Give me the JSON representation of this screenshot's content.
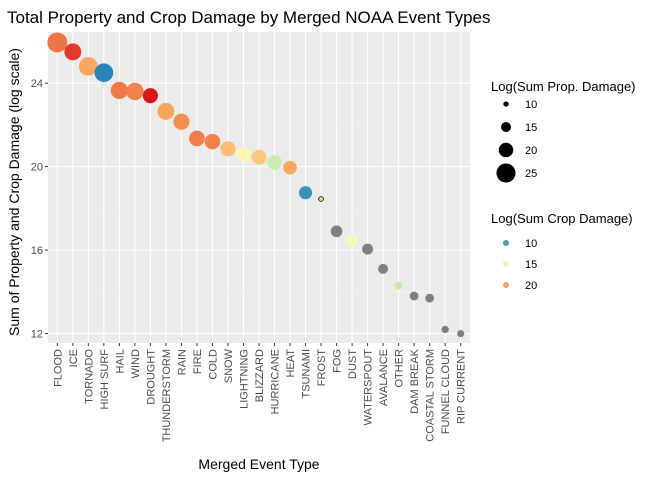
{
  "chart_data": {
    "type": "scatter",
    "title": "Total Property and Crop Damage by Merged NOAA Event Types",
    "xlabel": "Merged Event Type",
    "ylabel": "Sum of Property and Crop Damage (log scale)",
    "ylim": [
      11.55,
      26.45
    ],
    "yticks": [
      12,
      16,
      20,
      24
    ],
    "grid": true,
    "legend_position": "right",
    "categories": [
      "FLOOD",
      "ICE",
      "TORNADO",
      "HIGH SURF",
      "HAIL",
      "WIND",
      "DROUGHT",
      "THUNDERSTORM",
      "RAIN",
      "FIRE",
      "COLD",
      "SNOW",
      "LIGHTNING",
      "BLIZZARD",
      "HURRICANE",
      "HEAT",
      "TSUNAMI",
      "FROST",
      "FOG",
      "DUST",
      "WATERSPOUT",
      "AVALANCE",
      "OTHER",
      "DAM BREAK",
      "COASTAL STORM",
      "FUNNEL CLOUD",
      "RIP CURRENT"
    ],
    "points": [
      {
        "x": "FLOOD",
        "y": 25.95,
        "size": 25.9,
        "color": 21.1
      },
      {
        "x": "ICE",
        "y": 25.5,
        "size": 22.7,
        "color": 22.5
      },
      {
        "x": "TORNADO",
        "y": 24.8,
        "size": 24.6,
        "color": 19.9
      },
      {
        "x": "HIGH SURF",
        "y": 24.5,
        "size": 24.5,
        "color": 9.0
      },
      {
        "x": "HAIL",
        "y": 23.65,
        "size": 23.0,
        "color": 21.0
      },
      {
        "x": "WIND",
        "y": 23.6,
        "size": 23.2,
        "color": 20.8
      },
      {
        "x": "DROUGHT",
        "y": 23.4,
        "size": 20.7,
        "color": 23.3
      },
      {
        "x": "THUNDERSTORM",
        "y": 22.65,
        "size": 22.6,
        "color": 20.0
      },
      {
        "x": "RAIN",
        "y": 22.15,
        "size": 21.8,
        "color": 20.5
      },
      {
        "x": "FIRE",
        "y": 21.35,
        "size": 21.2,
        "color": 20.9
      },
      {
        "x": "COLD",
        "y": 21.2,
        "size": 21.1,
        "color": 20.8
      },
      {
        "x": "SNOW",
        "y": 20.85,
        "size": 20.8,
        "color": 19.0
      },
      {
        "x": "LIGHTNING",
        "y": 20.6,
        "size": 20.8,
        "color": 16.6
      },
      {
        "x": "BLIZZARD",
        "y": 20.45,
        "size": 20.5,
        "color": 18.6
      },
      {
        "x": "HURRICANE",
        "y": 20.2,
        "size": 20.2,
        "color": 14.0
      },
      {
        "x": "HEAT",
        "y": 19.95,
        "size": 19.1,
        "color": 19.9
      },
      {
        "x": "TSUNAMI",
        "y": 18.75,
        "size": 18.5,
        "color": 9.5
      },
      {
        "x": "FROST",
        "y": 18.45,
        "size": 9.3,
        "color": 18.0
      },
      {
        "x": "FOG",
        "y": 16.9,
        "size": 16.9,
        "color": null
      },
      {
        "x": "DUST",
        "y": 16.45,
        "size": 16.4,
        "color": 15.6
      },
      {
        "x": "WATERSPOUT",
        "y": 16.05,
        "size": 16.1,
        "color": null
      },
      {
        "x": "AVALANCE",
        "y": 15.1,
        "size": 15.1,
        "color": null
      },
      {
        "x": "OTHER",
        "y": 14.3,
        "size": 12.6,
        "color": 13.8
      },
      {
        "x": "DAM BREAK",
        "y": 13.8,
        "size": 13.8,
        "color": null
      },
      {
        "x": "COASTAL STORM",
        "y": 13.7,
        "size": 13.7,
        "color": null
      },
      {
        "x": "FUNNEL CLOUD",
        "y": 12.2,
        "size": 12.2,
        "color": null
      },
      {
        "x": "RIP CURRENT",
        "y": 12.0,
        "size": 12.0,
        "color": null
      }
    ],
    "size_legend": {
      "title": "Log(Sum Prop. Damage)",
      "values": [
        10,
        15,
        20,
        25
      ]
    },
    "color_legend": {
      "title": "Log(Sum Crop Damage)",
      "values": [
        10,
        15,
        20
      ]
    },
    "colors": {
      "panel": "#ebebeb",
      "grid_major": "#ffffff",
      "grid_minor": "#f5f5f5",
      "missing": "#7f7f7f",
      "scale": [
        "#2b83ba",
        "#abdda4",
        "#ffffbf",
        "#fdae61",
        "#d7191c"
      ]
    }
  }
}
